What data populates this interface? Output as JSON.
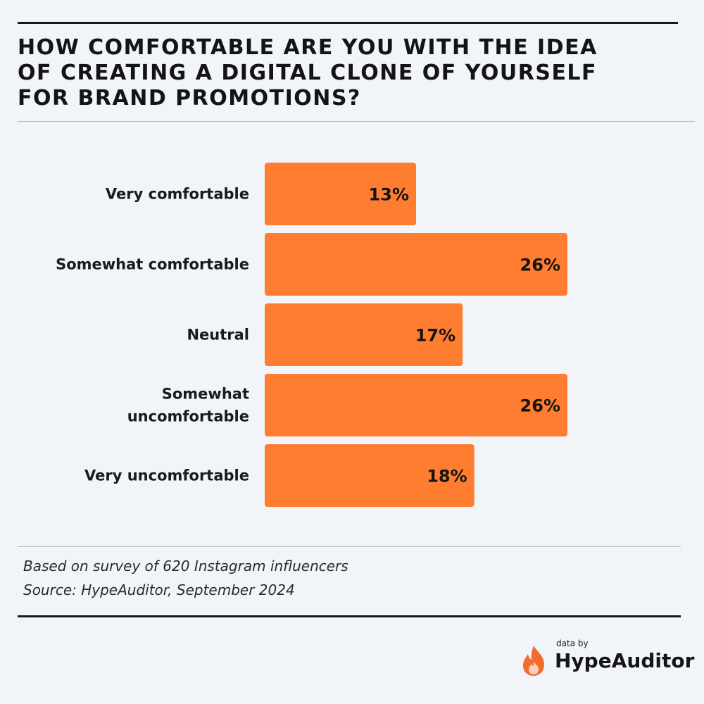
{
  "title": "How comfortable are you with the idea of creating a digital clone of yourself for brand promotions?",
  "notes": {
    "survey": "Based on survey of 620 Instagram influencers",
    "source": "Source: HypeAuditor, September 2024"
  },
  "brand": {
    "prefix": "data by",
    "name": "HypeAuditor",
    "icon": "flame-icon",
    "icon_color": "#f26b2f"
  },
  "colors": {
    "bar": "#ff7d30",
    "background": "#f1f4f9"
  },
  "chart_data": {
    "type": "bar",
    "orientation": "horizontal",
    "title": "How comfortable are you with the idea of creating a digital clone of yourself for brand promotions?",
    "categories": [
      [
        "Very comfortable"
      ],
      [
        "Somewhat comfortable"
      ],
      [
        "Neutral"
      ],
      [
        "Somewhat",
        "uncomfortable"
      ],
      [
        "Very uncomfortable"
      ]
    ],
    "values": [
      13,
      26,
      17,
      26,
      18
    ],
    "value_labels": [
      "13%",
      "26%",
      "17%",
      "26%",
      "18%"
    ],
    "unit": "%",
    "xlim": [
      0,
      26
    ],
    "grid": false,
    "legend": "none"
  }
}
